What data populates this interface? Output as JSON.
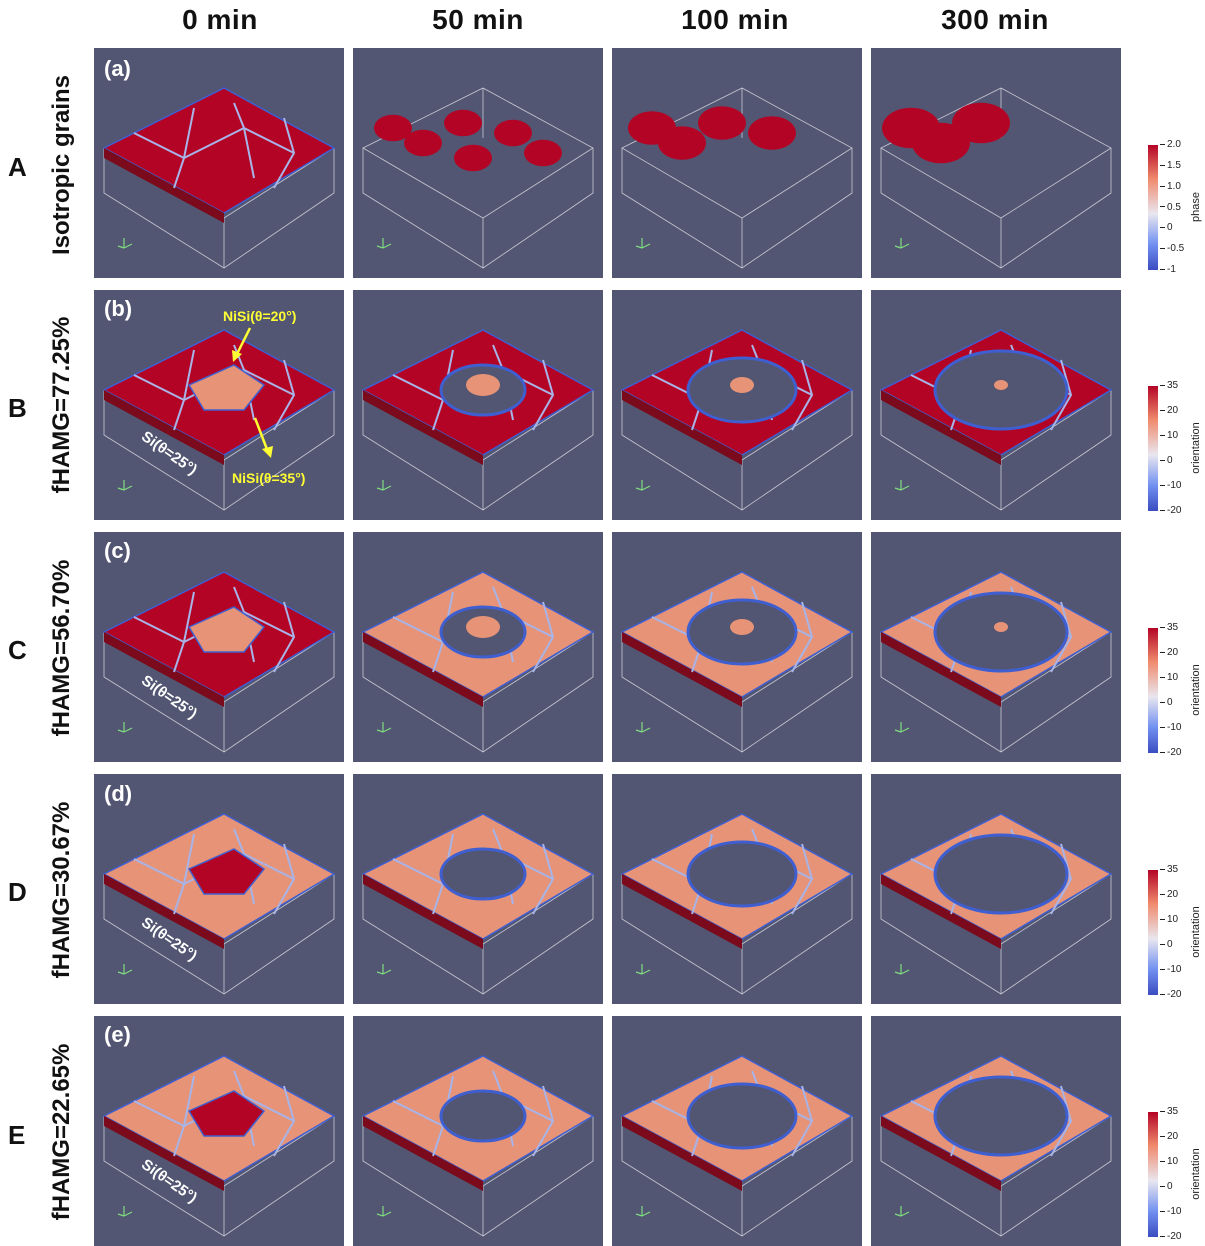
{
  "columns": [
    "0 min",
    "50 min",
    "100 min",
    "300 min"
  ],
  "rows": [
    {
      "letter": "A",
      "label": "Isotropic grains",
      "panel_label": "(a)"
    },
    {
      "letter": "B",
      "label": "fHAMG=77.25%",
      "panel_label": "(b)"
    },
    {
      "letter": "C",
      "label": "fHAMG=56.70%",
      "panel_label": "(c)"
    },
    {
      "letter": "D",
      "label": "fHAMG=30.67%",
      "panel_label": "(d)"
    },
    {
      "letter": "E",
      "label": "fHAMG=22.65%",
      "panel_label": "(e)"
    }
  ],
  "annotations": {
    "nisi_20": "NiSi(θ=20°)",
    "nisi_35": "NiSi(θ=35°)",
    "si_25": "Si(θ=25°)"
  },
  "colorbars": [
    {
      "title": "phase",
      "ticks": [
        "2.0",
        "1.5",
        "1.0",
        "0.5",
        "0",
        "-0.5",
        "-1"
      ]
    },
    {
      "title": "orientation",
      "ticks": [
        "35",
        "20",
        "10",
        "0",
        "-10",
        "-20"
      ]
    },
    {
      "title": "orientation",
      "ticks": [
        "35",
        "20",
        "10",
        "0",
        "-10",
        "-20"
      ]
    },
    {
      "title": "orientation",
      "ticks": [
        "35",
        "20",
        "10",
        "0",
        "-10",
        "-20"
      ]
    },
    {
      "title": "orientation",
      "ticks": [
        "35",
        "20",
        "10",
        "0",
        "-10",
        "-20"
      ]
    }
  ],
  "colors": {
    "panel_bg": "#525672",
    "grain_red": "#b40426",
    "grain_salmon": "#e69377",
    "boundary_blue": "#3f5fd0",
    "annotation_yellow": "#ffff33"
  }
}
